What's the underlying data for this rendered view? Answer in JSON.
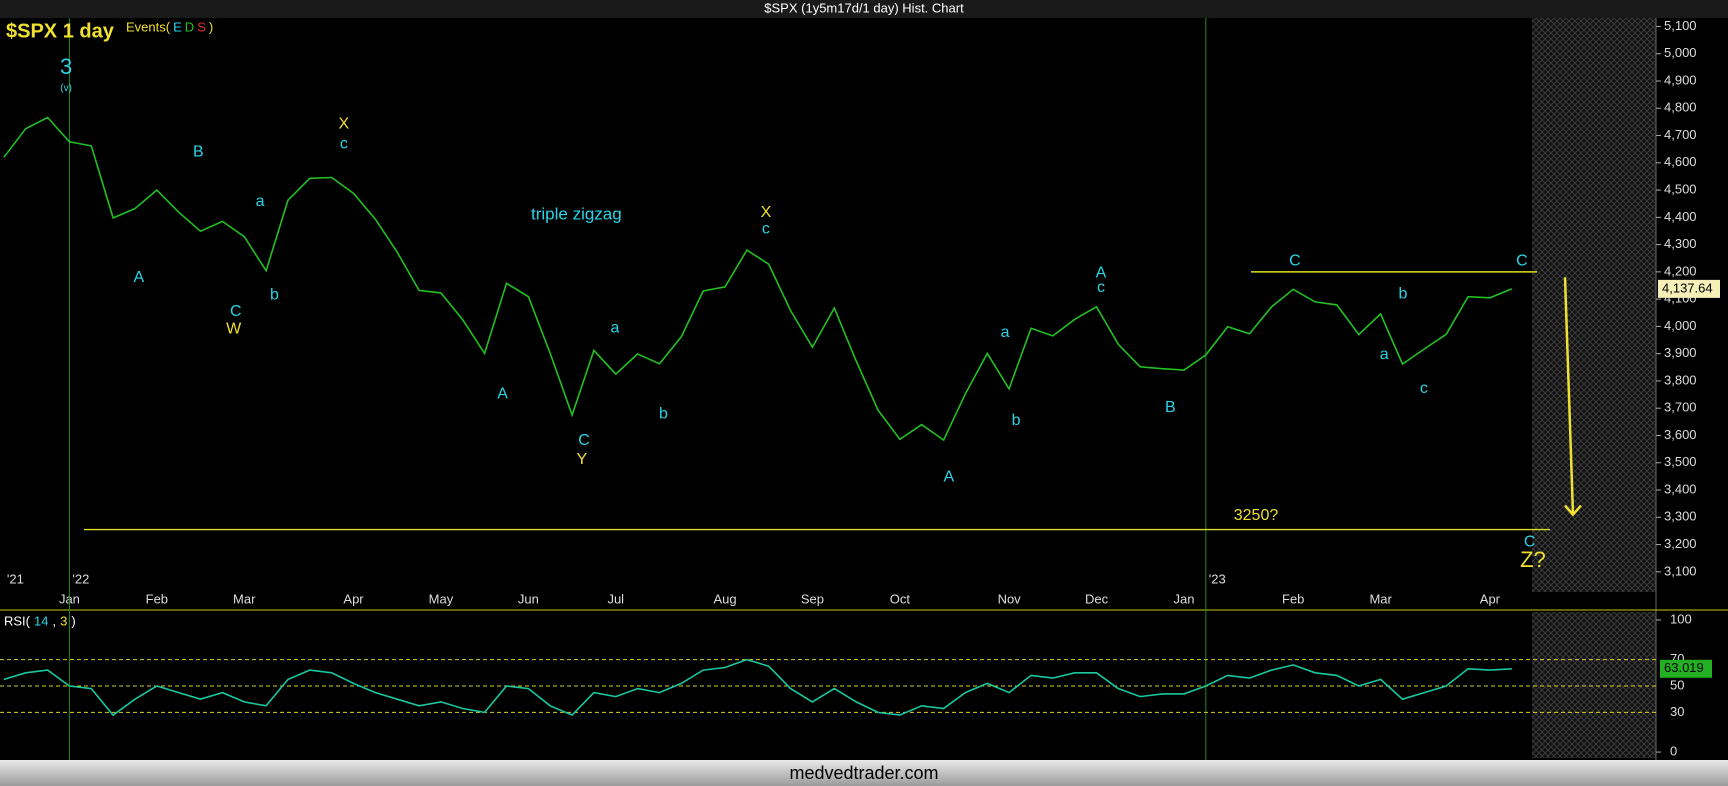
{
  "window_title": "$SPX (1y5m17d/1 day) Hist. Chart",
  "footer": "medvedtrader.com",
  "chart_data": [
    {
      "type": "line",
      "title": "$SPX 1 day",
      "events_label": [
        "Events(",
        "E",
        "D",
        "S",
        ")"
      ],
      "categories": [
        null,
        null,
        null,
        "Jan",
        null,
        null,
        null,
        "Feb",
        null,
        null,
        null,
        "Mar",
        null,
        null,
        null,
        null,
        "Apr",
        null,
        null,
        null,
        "May",
        null,
        null,
        null,
        "Jun",
        null,
        null,
        null,
        "Jul",
        null,
        null,
        null,
        null,
        "Aug",
        null,
        null,
        null,
        "Sep",
        null,
        null,
        null,
        "Oct",
        null,
        null,
        null,
        null,
        "Nov",
        null,
        null,
        null,
        "Dec",
        null,
        null,
        null,
        "Jan",
        null,
        null,
        null,
        null,
        "Feb",
        null,
        null,
        null,
        "Mar",
        null,
        null,
        null,
        null,
        "Apr",
        null
      ],
      "period_labels": [
        "'21",
        null,
        null,
        "'22",
        null,
        null,
        null,
        null,
        null,
        null,
        null,
        null,
        null,
        null,
        null,
        null,
        null,
        null,
        null,
        null,
        null,
        null,
        null,
        null,
        null,
        null,
        null,
        null,
        null,
        null,
        null,
        null,
        null,
        null,
        null,
        null,
        null,
        null,
        null,
        null,
        null,
        null,
        null,
        null,
        null,
        null,
        null,
        null,
        null,
        null,
        null,
        null,
        null,
        null,
        null,
        "'23",
        null,
        null,
        null,
        null,
        null,
        null,
        null,
        null,
        null,
        null,
        null,
        null,
        null,
        null
      ],
      "series": [
        {
          "name": "$SPX",
          "color": "#22c022",
          "values": [
            4620,
            4725,
            4766,
            4677,
            4662,
            4398,
            4432,
            4500,
            4419,
            4349,
            4385,
            4329,
            4204,
            4463,
            4543,
            4546,
            4488,
            4393,
            4272,
            4132,
            4123,
            4024,
            3901,
            4158,
            4109,
            3901,
            3675,
            3912,
            3825,
            3899,
            3863,
            3962,
            4130,
            4145,
            4280,
            4228,
            4058,
            3924,
            4067,
            3873,
            3693,
            3586,
            3640,
            3583,
            3753,
            3901,
            3771,
            3993,
            3965,
            4026,
            4072,
            3934,
            3852,
            3845,
            3840,
            3895,
            3999,
            3973,
            4071,
            4136,
            4090,
            4079,
            3970,
            4046,
            3862,
            3917,
            3971,
            4109,
            4105,
            4137.64
          ]
        }
      ],
      "last_price": {
        "value": 4137.64,
        "label": "4,137.64"
      },
      "ylim": [
        3026,
        5131
      ],
      "yticks": [
        {
          "value": 3100,
          "label": "3,100"
        },
        {
          "value": 3200,
          "label": "3,200"
        },
        {
          "value": 3300,
          "label": "3,300"
        },
        {
          "value": 3400,
          "label": "3,400"
        },
        {
          "value": 3500,
          "label": "3,500"
        },
        {
          "value": 3600,
          "label": "3,600"
        },
        {
          "value": 3700,
          "label": "3,700"
        },
        {
          "value": 3800,
          "label": "3,800"
        },
        {
          "value": 3900,
          "label": "3,900"
        },
        {
          "value": 4000,
          "label": "4,000"
        },
        {
          "value": 4100,
          "label": "4,100"
        },
        {
          "value": 4200,
          "label": "4,200"
        },
        {
          "value": 4300,
          "label": "4,300"
        },
        {
          "value": 4400,
          "label": "4,400"
        },
        {
          "value": 4500,
          "label": "4,500"
        },
        {
          "value": 4600,
          "label": "4,600"
        },
        {
          "value": 4700,
          "label": "4,700"
        },
        {
          "value": 4800,
          "label": "4,800"
        },
        {
          "value": 4900,
          "label": "4,900"
        },
        {
          "value": 5000,
          "label": "5,000"
        },
        {
          "value": 5100,
          "label": "5,100"
        }
      ],
      "levels": [
        {
          "label": "3250?",
          "value": 3255
        },
        {
          "value": 4200
        }
      ],
      "projection": [
        4180,
        3310
      ],
      "annotations": [
        {
          "text": "3",
          "color": "#2ad4e8"
        },
        {
          "text": "(v)",
          "color": "#2ad4e8"
        },
        {
          "text": "A",
          "color": "#2ad4e8"
        },
        {
          "text": "B",
          "color": "#2ad4e8"
        },
        {
          "text": "C",
          "color": "#2ad4e8"
        },
        {
          "text": "W",
          "color": "#f0e030"
        },
        {
          "text": "a",
          "color": "#2ad4e8"
        },
        {
          "text": "b",
          "color": "#2ad4e8"
        },
        {
          "text": "X",
          "color": "#f0e030"
        },
        {
          "text": "c",
          "color": "#2ad4e8"
        },
        {
          "text": "triple zigzag",
          "color": "#2ad4e8"
        },
        {
          "text": "X",
          "color": "#f0e030"
        },
        {
          "text": "c",
          "color": "#2ad4e8"
        },
        {
          "text": "a",
          "color": "#2ad4e8"
        },
        {
          "text": "b",
          "color": "#2ad4e8"
        },
        {
          "text": "A",
          "color": "#2ad4e8"
        },
        {
          "text": "C",
          "color": "#2ad4e8"
        },
        {
          "text": "Y",
          "color": "#f0e030"
        },
        {
          "text": "A",
          "color": "#2ad4e8"
        },
        {
          "text": "a",
          "color": "#2ad4e8"
        },
        {
          "text": "b",
          "color": "#2ad4e8"
        },
        {
          "text": "A",
          "color": "#2ad4e8"
        },
        {
          "text": "c",
          "color": "#2ad4e8"
        },
        {
          "text": "B",
          "color": "#2ad4e8"
        },
        {
          "text": "C",
          "color": "#2ad4e8"
        },
        {
          "text": "b",
          "color": "#2ad4e8"
        },
        {
          "text": "a",
          "color": "#2ad4e8"
        },
        {
          "text": "c",
          "color": "#2ad4e8"
        },
        {
          "text": "C",
          "color": "#2ad4e8"
        },
        {
          "text": "C",
          "color": "#2ad4e8"
        },
        {
          "text": "Z?",
          "color": "#f0e030"
        }
      ]
    },
    {
      "type": "line",
      "label_parts": [
        "RSI(",
        "14",
        ",",
        "3",
        ")"
      ],
      "series": [
        {
          "name": "RSI",
          "color": "#18c8a0",
          "values": [
            55,
            60,
            62,
            50,
            48,
            28,
            40,
            50,
            45,
            40,
            45,
            38,
            35,
            55,
            62,
            60,
            52,
            45,
            40,
            35,
            38,
            33,
            30,
            50,
            48,
            35,
            28,
            45,
            42,
            48,
            45,
            52,
            62,
            64,
            70,
            65,
            48,
            38,
            48,
            38,
            30,
            28,
            35,
            33,
            45,
            52,
            45,
            58,
            56,
            60,
            60,
            48,
            42,
            44,
            44,
            50,
            58,
            56,
            62,
            66,
            60,
            58,
            50,
            55,
            40,
            45,
            50,
            63,
            62,
            63.019
          ]
        }
      ],
      "ylim": [
        -4.5,
        104.5
      ],
      "yticks": [
        0,
        30,
        50,
        70,
        100
      ]
    }
  ]
}
